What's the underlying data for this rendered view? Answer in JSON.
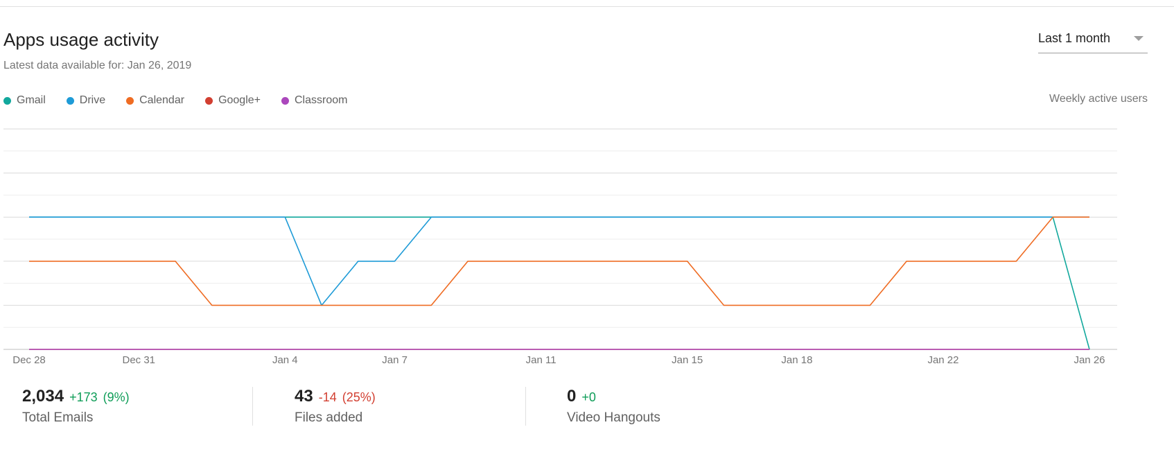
{
  "header": {
    "title": "Apps usage activity",
    "subtitle": "Latest data available for: Jan 26, 2019",
    "range_value": "Last 1 month",
    "metric_label": "Weekly active users"
  },
  "legend": [
    {
      "name": "Gmail",
      "color": "#12a89d"
    },
    {
      "name": "Drive",
      "color": "#1e9bd7"
    },
    {
      "name": "Calendar",
      "color": "#ef6c23"
    },
    {
      "name": "Google+",
      "color": "#d23f31"
    },
    {
      "name": "Classroom",
      "color": "#ab47bc"
    }
  ],
  "stats": [
    {
      "value": "2,034",
      "delta": "+173",
      "pct": "(9%)",
      "label": "Total Emails",
      "trend": "pos"
    },
    {
      "value": "43",
      "delta": "-14",
      "pct": "(25%)",
      "label": "Files added",
      "trend": "neg"
    },
    {
      "value": "0",
      "delta": "+0",
      "pct": "",
      "label": "Video Hangouts",
      "trend": "pos"
    }
  ],
  "chart_data": {
    "type": "line",
    "x_labels": [
      "Dec 28",
      "Dec 31",
      "Jan 4",
      "Jan 7",
      "Jan 11",
      "Jan 15",
      "Jan 18",
      "Jan 22",
      "Jan 26"
    ],
    "x": [
      "Dec 28",
      "Dec 29",
      "Dec 30",
      "Dec 31",
      "Jan 1",
      "Jan 2",
      "Jan 3",
      "Jan 4",
      "Jan 5",
      "Jan 6",
      "Jan 7",
      "Jan 8",
      "Jan 9",
      "Jan 10",
      "Jan 11",
      "Jan 12",
      "Jan 13",
      "Jan 14",
      "Jan 15",
      "Jan 16",
      "Jan 17",
      "Jan 18",
      "Jan 19",
      "Jan 20",
      "Jan 21",
      "Jan 22",
      "Jan 23",
      "Jan 24",
      "Jan 25",
      "Jan 26"
    ],
    "ylim": [
      0,
      10
    ],
    "grid": true,
    "series": [
      {
        "name": "Gmail",
        "color": "#12a89d",
        "values": [
          6,
          6,
          6,
          6,
          6,
          6,
          6,
          6,
          6,
          6,
          6,
          6,
          6,
          6,
          6,
          6,
          6,
          6,
          6,
          6,
          6,
          6,
          6,
          6,
          6,
          6,
          6,
          6,
          6,
          0
        ]
      },
      {
        "name": "Drive",
        "color": "#1e9bd7",
        "values": [
          6,
          6,
          6,
          6,
          6,
          6,
          6,
          6,
          2,
          4,
          4,
          6,
          6,
          6,
          6,
          6,
          6,
          6,
          6,
          6,
          6,
          6,
          6,
          6,
          6,
          6,
          6,
          6,
          6,
          6
        ]
      },
      {
        "name": "Calendar",
        "color": "#ef6c23",
        "values": [
          4,
          4,
          4,
          4,
          4,
          2,
          2,
          2,
          2,
          2,
          2,
          2,
          4,
          4,
          4,
          4,
          4,
          4,
          4,
          2,
          2,
          2,
          2,
          2,
          4,
          4,
          4,
          4,
          6,
          6
        ]
      },
      {
        "name": "Google+",
        "color": "#d23f31",
        "values": [
          0,
          0,
          0,
          0,
          0,
          0,
          0,
          0,
          0,
          0,
          0,
          0,
          0,
          0,
          0,
          0,
          0,
          0,
          0,
          0,
          0,
          0,
          0,
          0,
          0,
          0,
          0,
          0,
          0,
          0
        ]
      },
      {
        "name": "Classroom",
        "color": "#ab47bc",
        "values": [
          0,
          0,
          0,
          0,
          0,
          0,
          0,
          0,
          0,
          0,
          0,
          0,
          0,
          0,
          0,
          0,
          0,
          0,
          0,
          0,
          0,
          0,
          0,
          0,
          0,
          0,
          0,
          0,
          0,
          0
        ]
      }
    ]
  }
}
